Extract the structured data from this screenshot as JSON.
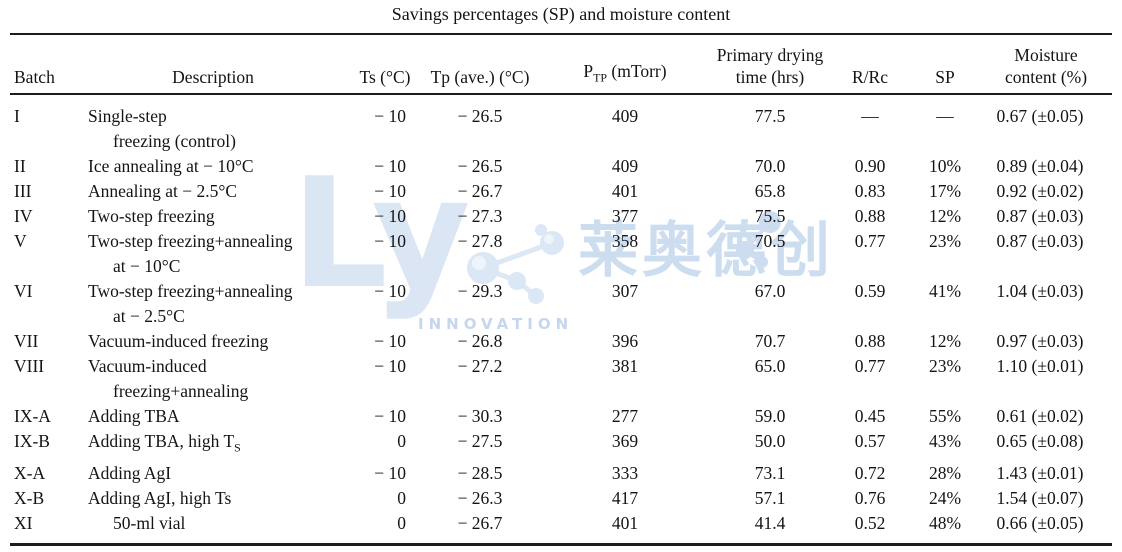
{
  "title": "Savings percentages (SP) and moisture content",
  "watermark": {
    "logo_text": "Ly",
    "innovation_text": "INNOVATION",
    "cjk_text": "莱奥德创",
    "color_light": "#dbe6f4",
    "color_mid": "#c5d6ee"
  },
  "table": {
    "headers": {
      "batch": "Batch",
      "description": "Description",
      "ts": "Ts (°C)",
      "tp": "Tp (ave.) (°C)",
      "ptp": "P~TP~ (mTorr)",
      "drying_line1": "Primary drying",
      "drying_line2": "time (hrs)",
      "rrc": "R/Rc",
      "sp": "SP",
      "moisture_line1": "Moisture",
      "moisture_line2": "content (%)"
    },
    "rows": [
      {
        "batch": "I",
        "description": [
          {
            "text": "Single-step",
            "indent": false
          },
          {
            "text": "freezing (control)",
            "indent": true
          }
        ],
        "ts": "− 10",
        "tp": "− 26.5",
        "ptp": "409",
        "drying": "77.5",
        "rrc": "—",
        "sp": "—",
        "moisture": "0.67 (±0.05)"
      },
      {
        "batch": "II",
        "description": [
          {
            "text": "Ice annealing at − 10°C",
            "indent": false
          }
        ],
        "ts": "− 10",
        "tp": "− 26.5",
        "ptp": "409",
        "drying": "70.0",
        "rrc": "0.90",
        "sp": "10%",
        "moisture": "0.89 (±0.04)"
      },
      {
        "batch": "III",
        "description": [
          {
            "text": "Annealing at − 2.5°C",
            "indent": false
          }
        ],
        "ts": "− 10",
        "tp": "− 26.7",
        "ptp": "401",
        "drying": "65.8",
        "rrc": "0.83",
        "sp": "17%",
        "moisture": "0.92 (±0.02)"
      },
      {
        "batch": "IV",
        "description": [
          {
            "text": "Two-step freezing",
            "indent": false
          }
        ],
        "ts": "− 10",
        "tp": "− 27.3",
        "ptp": "377",
        "drying": "75.5",
        "rrc": "0.88",
        "sp": "12%",
        "moisture": "0.87 (±0.03)"
      },
      {
        "batch": "V",
        "description": [
          {
            "text": "Two-step freezing+annealing",
            "indent": false
          },
          {
            "text": "at − 10°C",
            "indent": true
          }
        ],
        "ts": "− 10",
        "tp": "− 27.8",
        "ptp": "358",
        "drying": "70.5",
        "rrc": "0.77",
        "sp": "23%",
        "moisture": "0.87 (±0.03)"
      },
      {
        "batch": "VI",
        "description": [
          {
            "text": "Two-step freezing+annealing",
            "indent": false
          },
          {
            "text": "at − 2.5°C",
            "indent": true
          }
        ],
        "ts": "− 10",
        "tp": "− 29.3",
        "ptp": "307",
        "drying": "67.0",
        "rrc": "0.59",
        "sp": "41%",
        "moisture": "1.04 (±0.03)"
      },
      {
        "batch": "VII",
        "description": [
          {
            "text": "Vacuum-induced freezing",
            "indent": false
          }
        ],
        "ts": "− 10",
        "tp": "− 26.8",
        "ptp": "396",
        "drying": "70.7",
        "rrc": "0.88",
        "sp": "12%",
        "moisture": "0.97 (±0.03)"
      },
      {
        "batch": "VIII",
        "description": [
          {
            "text": "Vacuum-induced",
            "indent": false
          },
          {
            "text": "freezing+annealing",
            "indent": true
          }
        ],
        "ts": "− 10",
        "tp": "− 27.2",
        "ptp": "381",
        "drying": "65.0",
        "rrc": "0.77",
        "sp": "23%",
        "moisture": "1.10 (±0.01)"
      },
      {
        "batch": "IX-A",
        "description": [
          {
            "text": "Adding TBA",
            "indent": false
          }
        ],
        "ts": "− 10",
        "tp": "− 30.3",
        "ptp": "277",
        "drying": "59.0",
        "rrc": "0.45",
        "sp": "55%",
        "moisture": "0.61 (±0.02)"
      },
      {
        "batch": "IX-B",
        "description": [
          {
            "text": "Adding TBA, high T~S~",
            "indent": false
          }
        ],
        "ts": "0",
        "tp": "− 27.5",
        "ptp": "369",
        "drying": "50.0",
        "rrc": "0.57",
        "sp": "43%",
        "moisture": "0.65 (±0.08)"
      },
      {
        "batch": "X-A",
        "description": [
          {
            "text": "Adding AgI",
            "indent": false
          }
        ],
        "ts": "− 10",
        "tp": "− 28.5",
        "ptp": "333",
        "drying": "73.1",
        "rrc": "0.72",
        "sp": "28%",
        "moisture": "1.43 (±0.01)"
      },
      {
        "batch": "X-B",
        "description": [
          {
            "text": "Adding AgI, high Ts",
            "indent": false
          }
        ],
        "ts": "0",
        "tp": "− 26.3",
        "ptp": "417",
        "drying": "57.1",
        "rrc": "0.76",
        "sp": "24%",
        "moisture": "1.54 (±0.07)"
      },
      {
        "batch": "XI",
        "description": [
          {
            "text": "50-ml vial",
            "indent": true
          }
        ],
        "ts": "0",
        "tp": "− 26.7",
        "ptp": "401",
        "drying": "41.4",
        "rrc": "0.52",
        "sp": "48%",
        "moisture": "0.66 (±0.05)"
      }
    ]
  }
}
